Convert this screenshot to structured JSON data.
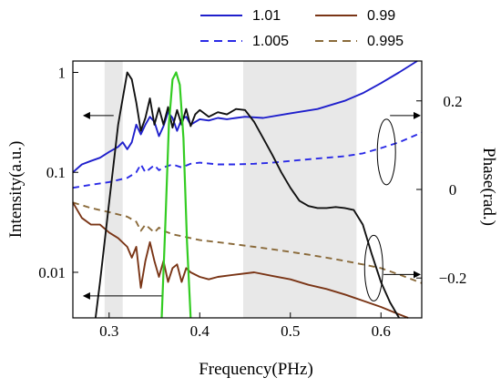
{
  "chart_data": {
    "type": "line",
    "title": "",
    "xlabel": "Frequency(PHz)",
    "ylabel_left": "Intensity(a.u.)",
    "ylabel_right": "Phase(rad.)",
    "x_ticks": [
      "0.3",
      "0.4",
      "0.5",
      "0.6"
    ],
    "y_left_ticks": [
      "1",
      "0.1",
      "0.01"
    ],
    "y_right_ticks": [
      "0.2",
      "0",
      "−0.2"
    ],
    "x_range": [
      0.26,
      0.645
    ],
    "y_left_log_range": [
      0.0035,
      1.3
    ],
    "y_right_range": [
      -0.29,
      0.29
    ],
    "shaded_bands": [
      [
        0.295,
        0.315
      ],
      [
        0.448,
        0.573
      ]
    ],
    "legend": {
      "placement": "top-right",
      "entries": [
        {
          "label": "1.01",
          "color": "#1f1fcc",
          "style": "solid"
        },
        {
          "label": "0.99",
          "color": "#7a3516",
          "style": "solid"
        },
        {
          "label": "1.005",
          "color": "#2a2ae6",
          "style": "dashed"
        },
        {
          "label": "0.995",
          "color": "#8a6a3a",
          "style": "dashed"
        }
      ]
    },
    "series": [
      {
        "name": "1.01",
        "axis": "left",
        "color": "#1f1fcc",
        "style": "solid",
        "x": [
          0.26,
          0.27,
          0.28,
          0.29,
          0.3,
          0.31,
          0.315,
          0.32,
          0.325,
          0.33,
          0.335,
          0.34,
          0.345,
          0.35,
          0.355,
          0.36,
          0.365,
          0.37,
          0.375,
          0.38,
          0.385,
          0.39,
          0.4,
          0.41,
          0.42,
          0.43,
          0.44,
          0.45,
          0.47,
          0.5,
          0.53,
          0.56,
          0.58,
          0.6,
          0.62,
          0.64
        ],
        "y": [
          0.1,
          0.12,
          0.13,
          0.14,
          0.16,
          0.18,
          0.2,
          0.17,
          0.2,
          0.3,
          0.24,
          0.3,
          0.36,
          0.32,
          0.23,
          0.29,
          0.4,
          0.35,
          0.26,
          0.34,
          0.36,
          0.3,
          0.34,
          0.33,
          0.35,
          0.34,
          0.35,
          0.36,
          0.35,
          0.39,
          0.43,
          0.52,
          0.62,
          0.78,
          1.0,
          1.3
        ]
      },
      {
        "name": "1.005",
        "axis": "left",
        "color": "#2a2ae6",
        "style": "dashed",
        "x": [
          0.26,
          0.28,
          0.3,
          0.32,
          0.33,
          0.335,
          0.34,
          0.35,
          0.355,
          0.36,
          0.37,
          0.38,
          0.39,
          0.4,
          0.42,
          0.44,
          0.46,
          0.48,
          0.5,
          0.52,
          0.54,
          0.56,
          0.58,
          0.6,
          0.62,
          0.645
        ],
        "y": [
          0.07,
          0.075,
          0.08,
          0.088,
          0.1,
          0.12,
          0.1,
          0.118,
          0.105,
          0.112,
          0.12,
          0.112,
          0.122,
          0.125,
          0.12,
          0.12,
          0.122,
          0.125,
          0.13,
          0.135,
          0.14,
          0.145,
          0.155,
          0.175,
          0.2,
          0.25
        ]
      },
      {
        "name": "0.995",
        "axis": "left",
        "color": "#8a6a3a",
        "style": "dashed",
        "x": [
          0.26,
          0.28,
          0.3,
          0.32,
          0.33,
          0.335,
          0.34,
          0.35,
          0.355,
          0.36,
          0.37,
          0.38,
          0.39,
          0.4,
          0.42,
          0.44,
          0.46,
          0.48,
          0.5,
          0.52,
          0.54,
          0.56,
          0.58,
          0.6,
          0.62,
          0.645
        ],
        "y": [
          0.05,
          0.044,
          0.04,
          0.036,
          0.032,
          0.026,
          0.03,
          0.025,
          0.028,
          0.026,
          0.024,
          0.023,
          0.022,
          0.021,
          0.02,
          0.019,
          0.018,
          0.017,
          0.016,
          0.015,
          0.014,
          0.013,
          0.012,
          0.011,
          0.0095,
          0.0078
        ]
      },
      {
        "name": "0.99",
        "axis": "left",
        "color": "#7a3516",
        "style": "solid",
        "x": [
          0.26,
          0.27,
          0.28,
          0.29,
          0.3,
          0.31,
          0.32,
          0.325,
          0.33,
          0.335,
          0.34,
          0.345,
          0.35,
          0.355,
          0.36,
          0.365,
          0.37,
          0.375,
          0.38,
          0.385,
          0.39,
          0.4,
          0.41,
          0.42,
          0.44,
          0.46,
          0.48,
          0.5,
          0.52,
          0.54,
          0.56,
          0.58,
          0.6,
          0.62,
          0.63
        ],
        "y": [
          0.05,
          0.035,
          0.03,
          0.03,
          0.025,
          0.022,
          0.018,
          0.014,
          0.018,
          0.007,
          0.013,
          0.02,
          0.013,
          0.009,
          0.013,
          0.008,
          0.011,
          0.012,
          0.008,
          0.011,
          0.01,
          0.009,
          0.0085,
          0.009,
          0.0095,
          0.01,
          0.0092,
          0.0085,
          0.0075,
          0.0068,
          0.006,
          0.0052,
          0.0045,
          0.0038,
          0.0032
        ]
      },
      {
        "name": "",
        "axis": "left",
        "color": "#111111",
        "style": "solid",
        "x": [
          0.285,
          0.29,
          0.3,
          0.31,
          0.32,
          0.325,
          0.33,
          0.335,
          0.34,
          0.345,
          0.35,
          0.355,
          0.36,
          0.365,
          0.37,
          0.375,
          0.38,
          0.385,
          0.39,
          0.395,
          0.4,
          0.41,
          0.42,
          0.43,
          0.44,
          0.45,
          0.46,
          0.47,
          0.48,
          0.49,
          0.5,
          0.51,
          0.52,
          0.53,
          0.54,
          0.55,
          0.56,
          0.57,
          0.58,
          0.59,
          0.6,
          0.61,
          0.62
        ],
        "y": [
          0.0035,
          0.008,
          0.05,
          0.3,
          1.0,
          0.85,
          0.5,
          0.26,
          0.35,
          0.55,
          0.3,
          0.44,
          0.3,
          0.45,
          0.28,
          0.42,
          0.3,
          0.43,
          0.29,
          0.38,
          0.42,
          0.36,
          0.4,
          0.38,
          0.43,
          0.42,
          0.32,
          0.22,
          0.15,
          0.1,
          0.07,
          0.052,
          0.046,
          0.044,
          0.044,
          0.045,
          0.044,
          0.042,
          0.03,
          0.015,
          0.008,
          0.005,
          0.0035
        ]
      },
      {
        "name": "",
        "axis": "left",
        "color": "#33cc22",
        "style": "solid",
        "x": [
          0.358,
          0.362,
          0.366,
          0.37,
          0.374,
          0.378,
          0.382,
          0.386,
          0.39
        ],
        "y": [
          0.0035,
          0.03,
          0.3,
          0.85,
          1.0,
          0.75,
          0.22,
          0.02,
          0.0035
        ]
      }
    ],
    "annotations": [
      {
        "type": "ellipse",
        "x": 0.606,
        "y_left": 0.16
      },
      {
        "type": "ellipse",
        "x": 0.592,
        "y_left": 0.011
      },
      {
        "type": "arrow",
        "from": 0.305,
        "to": 0.27,
        "y_left": 0.37
      },
      {
        "type": "arrow",
        "from": 0.358,
        "to": 0.27,
        "y_left": 0.0058
      },
      {
        "type": "arrow",
        "from": 0.61,
        "to": 0.645,
        "y_left": 0.37
      },
      {
        "type": "arrow",
        "from": 0.603,
        "to": 0.645,
        "y_left": 0.0095
      }
    ]
  }
}
